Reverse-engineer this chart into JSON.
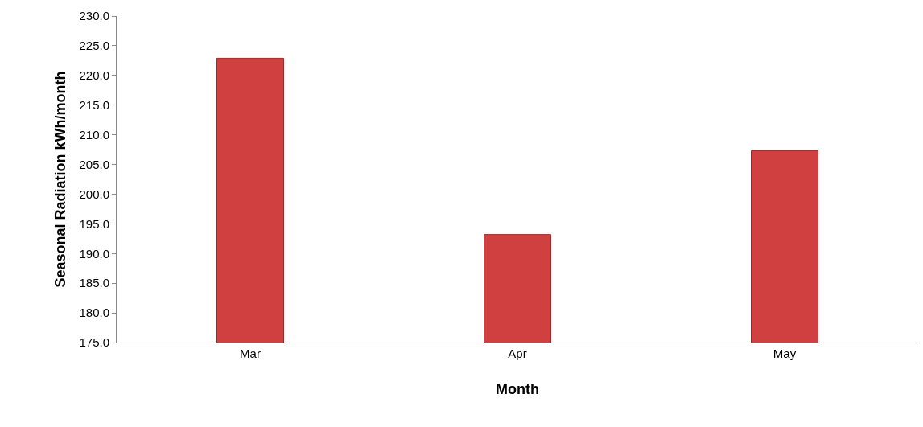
{
  "chart_data": {
    "type": "bar",
    "xlabel": "Month",
    "ylabel": "Seasonal Radiation kWh/month",
    "categories": [
      "Mar",
      "Apr",
      "May"
    ],
    "values": [
      222.9,
      193.2,
      207.3
    ],
    "color": "#d04040",
    "ylim": [
      175,
      230
    ],
    "yticks": [
      {
        "value": 175,
        "label": "175.0"
      },
      {
        "value": 180,
        "label": "180.0"
      },
      {
        "value": 185,
        "label": "185.0"
      },
      {
        "value": 190,
        "label": "190.0"
      },
      {
        "value": 195,
        "label": "195.0"
      },
      {
        "value": 200,
        "label": "200.0"
      },
      {
        "value": 205,
        "label": "205.0"
      },
      {
        "value": 210,
        "label": "210.0"
      },
      {
        "value": 215,
        "label": "215.0"
      },
      {
        "value": 220,
        "label": "220.0"
      },
      {
        "value": 225,
        "label": "225.0"
      },
      {
        "value": 230,
        "label": "230.0"
      }
    ],
    "grid": false
  }
}
